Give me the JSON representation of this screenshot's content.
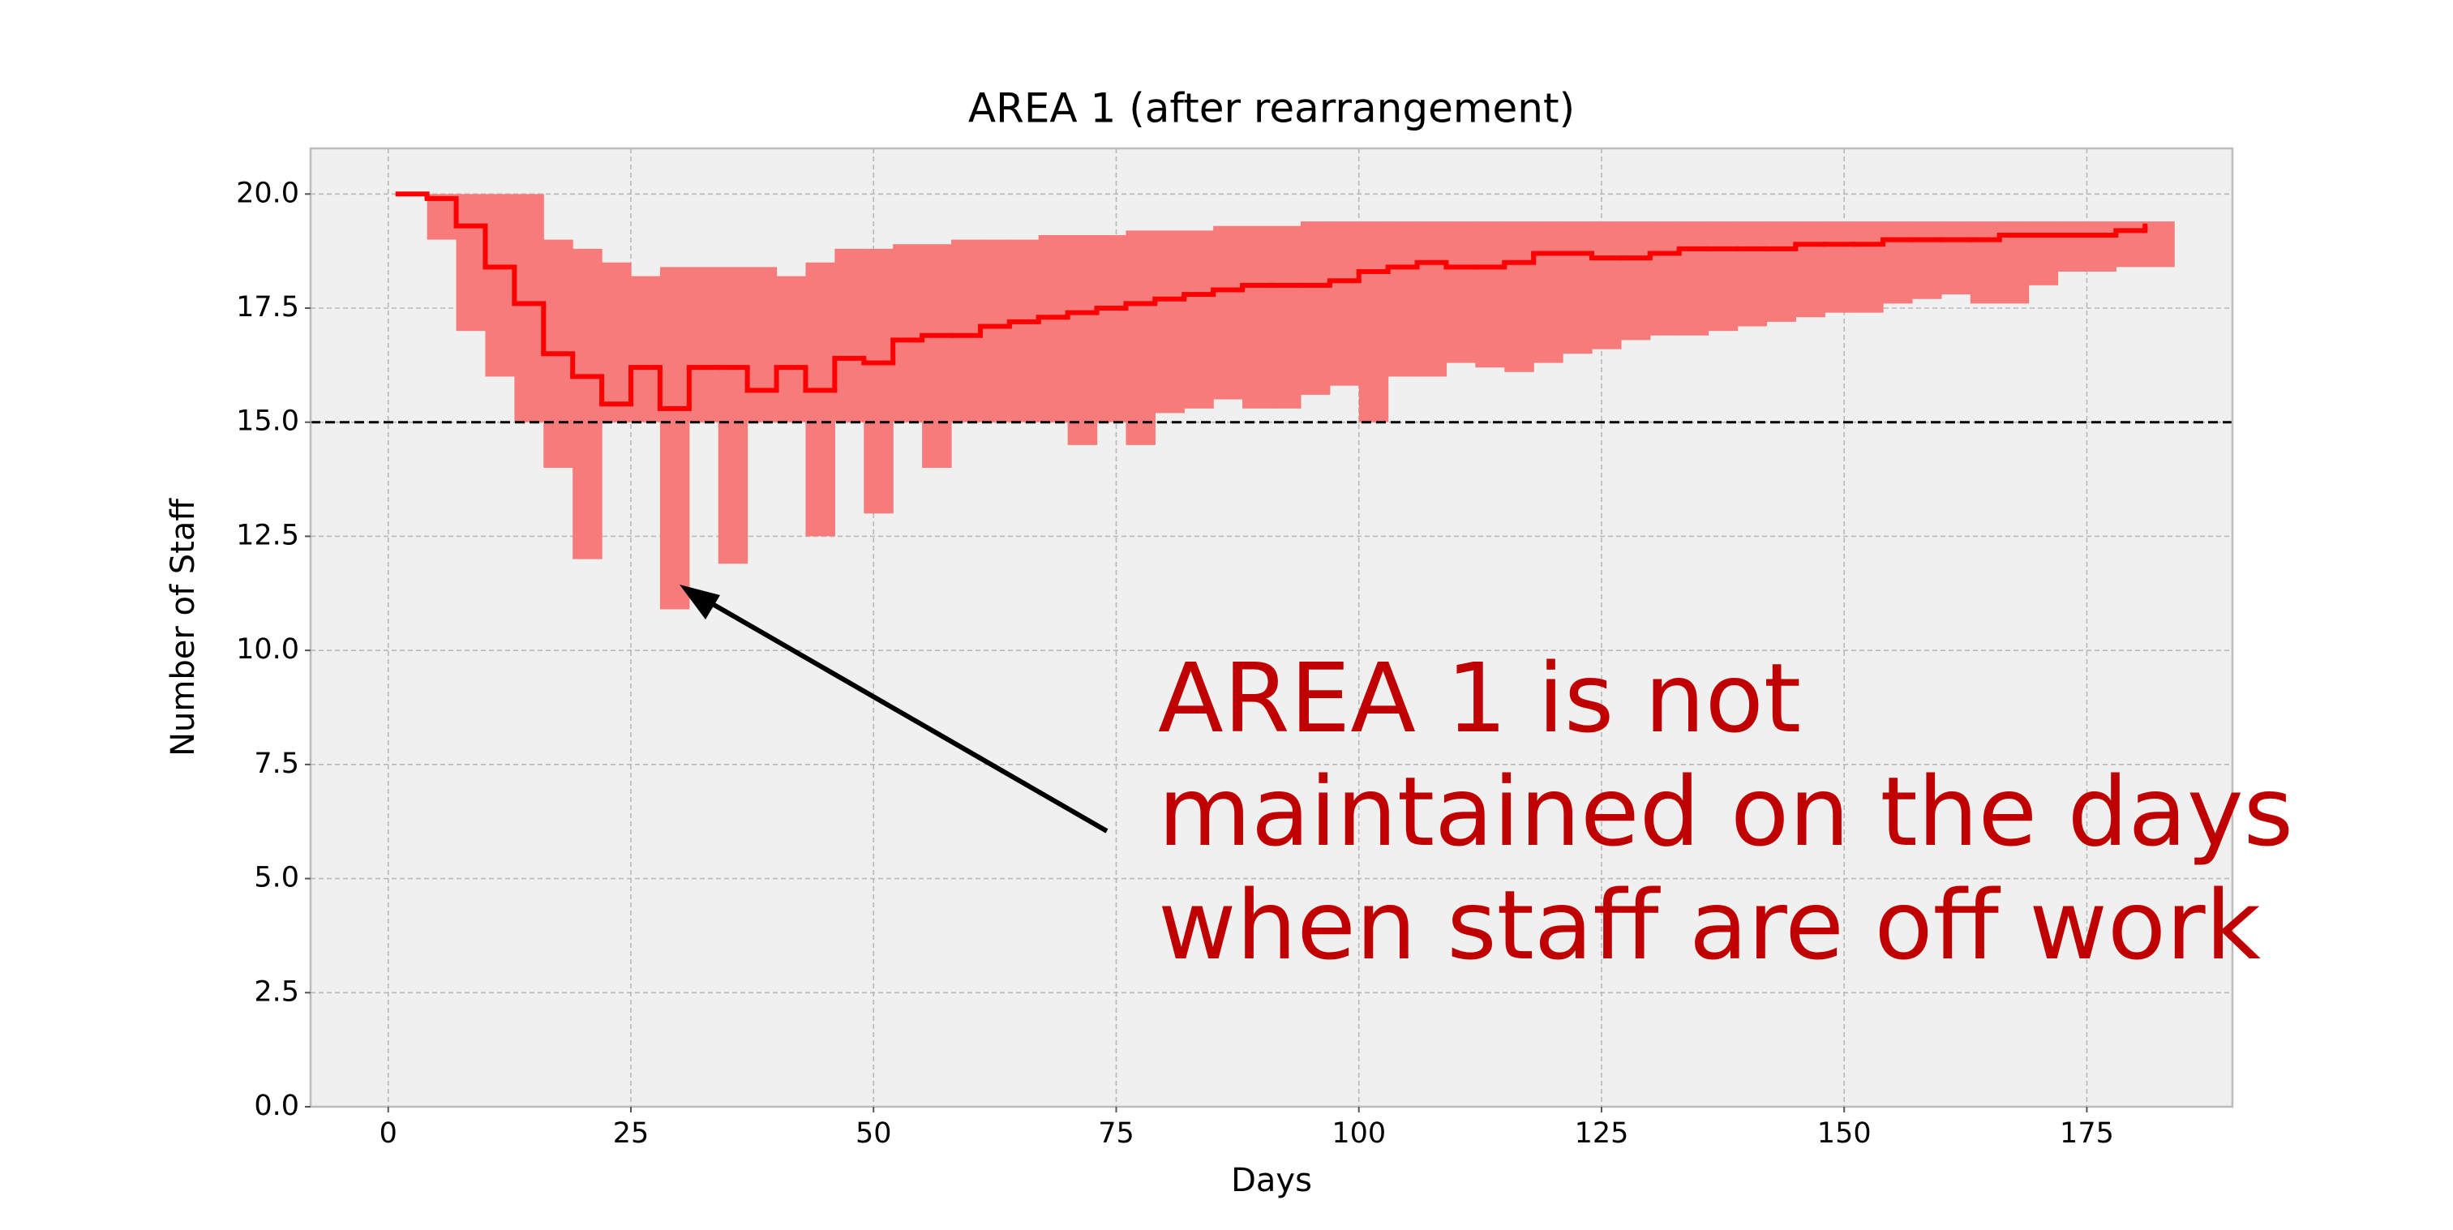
{
  "chart_data": {
    "type": "step-band",
    "title": "AREA 1 (after rearrangement)",
    "xlabel": "Days",
    "ylabel": "Number of Staff",
    "x": [
      1,
      4,
      7,
      10,
      13,
      16,
      19,
      22,
      25,
      28,
      31,
      34,
      37,
      40,
      43,
      46,
      49,
      52,
      55,
      58,
      61,
      64,
      67,
      70,
      73,
      76,
      79,
      82,
      85,
      88,
      91,
      94,
      97,
      100,
      103,
      106,
      109,
      112,
      115,
      118,
      121,
      124,
      127,
      130,
      133,
      136,
      139,
      142,
      145,
      148,
      151,
      154,
      157,
      160,
      163,
      166,
      169,
      172,
      175,
      178,
      181
    ],
    "series": [
      {
        "color": "#ff0000",
        "values": [
          20.0,
          19.9,
          19.3,
          18.4,
          17.6,
          16.5,
          16.0,
          15.4,
          16.2,
          15.3,
          16.2,
          16.2,
          15.7,
          16.2,
          15.7,
          16.4,
          16.3,
          16.8,
          16.9,
          16.9,
          17.1,
          17.2,
          17.3,
          17.4,
          17.5,
          17.6,
          17.7,
          17.8,
          17.9,
          18.0,
          18.0,
          18.0,
          18.1,
          18.3,
          18.4,
          18.5,
          18.4,
          18.4,
          18.5,
          18.7,
          18.7,
          18.6,
          18.6,
          18.7,
          18.8,
          18.8,
          18.8,
          18.8,
          18.9,
          18.9,
          18.9,
          19.0,
          19.0,
          19.0,
          19.0,
          19.1,
          19.1,
          19.1,
          19.1,
          19.2,
          19.3
        ]
      }
    ],
    "band": {
      "color": "#f77b7b",
      "low": [
        20,
        19.0,
        17.0,
        16.0,
        15.0,
        14.0,
        12.0,
        15.0,
        15.0,
        10.9,
        15.0,
        11.9,
        15.0,
        15.0,
        12.5,
        15.0,
        13.0,
        15.0,
        14.0,
        15.0,
        15.0,
        15.0,
        15.0,
        14.5,
        15.0,
        14.5,
        15.2,
        15.3,
        15.5,
        15.3,
        15.3,
        15.6,
        15.8,
        15.0,
        16.0,
        16.0,
        16.3,
        16.2,
        16.1,
        16.3,
        16.5,
        16.6,
        16.8,
        16.9,
        16.9,
        17.0,
        17.1,
        17.2,
        17.3,
        17.4,
        17.4,
        17.6,
        17.7,
        17.8,
        17.6,
        17.6,
        18.0,
        18.3,
        18.3,
        18.4,
        18.4
      ],
      "high": [
        20,
        20,
        20,
        20,
        20,
        19.0,
        18.8,
        18.5,
        18.2,
        18.4,
        18.4,
        18.4,
        18.4,
        18.2,
        18.5,
        18.8,
        18.8,
        18.9,
        18.9,
        19.0,
        19.0,
        19.0,
        19.1,
        19.1,
        19.1,
        19.2,
        19.2,
        19.2,
        19.3,
        19.3,
        19.3,
        19.4,
        19.4,
        19.4,
        19.4,
        19.4,
        19.4,
        19.4,
        19.4,
        19.4,
        19.4,
        19.4,
        19.4,
        19.4,
        19.4,
        19.4,
        19.4,
        19.4,
        19.4,
        19.4,
        19.4,
        19.4,
        19.4,
        19.4,
        19.4,
        19.4,
        19.4,
        19.4,
        19.4,
        19.4,
        19.4
      ]
    },
    "hline": {
      "value": 15,
      "color": "#000000"
    },
    "xlim": [
      -8,
      190
    ],
    "ylim": [
      0,
      21
    ],
    "xticks": [
      0,
      25,
      50,
      75,
      100,
      125,
      150,
      175
    ],
    "yticks": [
      {
        "value": 0,
        "label": "0.0"
      },
      2.5,
      {
        "value": 5,
        "label": "5.0"
      },
      7.5,
      {
        "value": 10,
        "label": "10.0"
      },
      12.5,
      {
        "value": 15,
        "label": "15.0"
      },
      17.5,
      {
        "value": 20,
        "label": "20.0"
      }
    ],
    "grid": true,
    "annotation": {
      "color": "#c00000",
      "lines": [
        "AREA 1 is not",
        "maintained on the days",
        "when staff are off work"
      ]
    }
  }
}
